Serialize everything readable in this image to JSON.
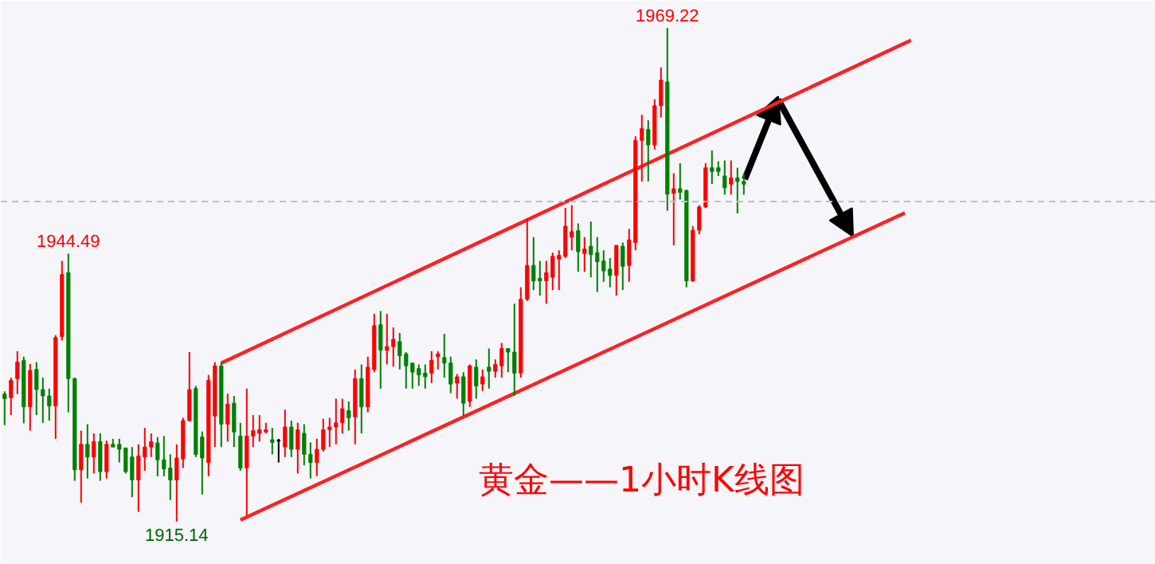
{
  "chart_data": {
    "type": "candlestick",
    "title": "黄金——1小时K线图",
    "categories": [
      null,
      null,
      null,
      null,
      null,
      null,
      null,
      null,
      null,
      null,
      null,
      null,
      null,
      null,
      null,
      null,
      null,
      null,
      null,
      null,
      null,
      null,
      null,
      null,
      null,
      null,
      null,
      null,
      null,
      null,
      null,
      null,
      null,
      null,
      null,
      null,
      null,
      null,
      null,
      null,
      null,
      null,
      null,
      null,
      null,
      null,
      null,
      null,
      null,
      null,
      null,
      null,
      null,
      null,
      null,
      null,
      null,
      null,
      null,
      null,
      null,
      null,
      null,
      null,
      null,
      null,
      null,
      null,
      null,
      null,
      null,
      null,
      null,
      null,
      null,
      null,
      null,
      null,
      null,
      null,
      null,
      null,
      null,
      null,
      null,
      null,
      null,
      null,
      null,
      null,
      null,
      null,
      null,
      null,
      null,
      null,
      null,
      null,
      null,
      null,
      null,
      null,
      null,
      null,
      null,
      null,
      null,
      null,
      null,
      null,
      null,
      null,
      null,
      null,
      null,
      null,
      null
    ],
    "ohlc": [
      [
        1929.1,
        1929.4,
        1925.7,
        1928.6
      ],
      [
        1928.7,
        1930.9,
        1926.8,
        1930.6
      ],
      [
        1930.8,
        1933.8,
        1929.1,
        1932.6
      ],
      [
        1932.8,
        1933.2,
        1925.9,
        1927.7
      ],
      [
        1927.7,
        1932.4,
        1925.1,
        1931.7
      ],
      [
        1931.8,
        1932.6,
        1926.8,
        1929.6
      ],
      [
        1929.6,
        1930.9,
        1925.95,
        1928.9
      ],
      [
        1928.9,
        1929.7,
        1926.2,
        1927.8
      ],
      [
        1927.8,
        1935.55,
        1924.2,
        1935.3
      ],
      [
        1935.4,
        1943.7,
        1934.97,
        1942.2
      ],
      [
        1942.4,
        1944.49,
        1927.1,
        1930.8
      ],
      [
        1930.8,
        1930.9,
        1919.6,
        1920.8
      ],
      [
        1920.8,
        1925.1,
        1917.2,
        1923.6
      ],
      [
        1923.6,
        1925.8,
        1919.85,
        1922.2
      ],
      [
        1922.2,
        1924.8,
        1920.4,
        1923.9
      ],
      [
        1923.9,
        1924.8,
        1919.6,
        1920.6
      ],
      [
        1920.6,
        1924.0,
        1919.85,
        1923.6
      ],
      [
        1923.6,
        1924.2,
        1923.3,
        1923.3
      ],
      [
        1923.6,
        1924.2,
        1921.6,
        1923.05
      ],
      [
        1923.2,
        1923.2,
        1920.4,
        1920.6
      ],
      [
        1922.2,
        1923.3,
        1917.8,
        1919.7
      ],
      [
        1919.7,
        1923.6,
        1916.2,
        1922.3
      ],
      [
        1922.2,
        1925.4,
        1920.7,
        1923.3
      ],
      [
        1923.3,
        1924.8,
        1922.2,
        1923.9
      ],
      [
        1923.75,
        1924.4,
        1920.1,
        1921.9
      ],
      [
        1921.9,
        1924.5,
        1920.1,
        1920.9
      ],
      [
        1921.0,
        1922.5,
        1917.5,
        1919.7
      ],
      [
        1919.7,
        1923.6,
        1915.14,
        1922.1
      ],
      [
        1922.0,
        1926.5,
        1921.0,
        1926.2
      ],
      [
        1926.2,
        1933.7,
        1926.1,
        1929.6
      ],
      [
        1929.7,
        1930.0,
        1922.2,
        1922.5
      ],
      [
        1924.4,
        1925.0,
        1918.1,
        1922.1
      ],
      [
        1921.6,
        1931.2,
        1920.1,
        1930.6
      ],
      [
        1926.7,
        1932.6,
        1923.3,
        1932.2
      ],
      [
        1932.2,
        1932.6,
        1923.3,
        1925.8
      ],
      [
        1925.8,
        1929.15,
        1923.9,
        1928.0
      ],
      [
        1928.1,
        1928.9,
        1923.3,
        1924.95
      ],
      [
        1924.5,
        1925.95,
        1920.7,
        1921.0
      ],
      [
        1921.0,
        1929.7,
        1915.8,
        1924.5
      ],
      [
        1924.5,
        1926.8,
        1923.3,
        1925.1
      ],
      [
        1924.8,
        1926.8,
        1923.9,
        1925.2
      ],
      [
        1924.95,
        1925.95,
        1924.8,
        1925.2
      ],
      [
        1924.1,
        1925.4,
        1922.5,
        1923.8
      ],
      [
        1924.0,
        1924.2,
        1921.6,
        1924.0
      ],
      [
        1923.3,
        1927.4,
        1922.2,
        1925.5
      ],
      [
        1925.5,
        1926.2,
        1922.2,
        1923.05
      ],
      [
        1923.05,
        1925.95,
        1920.4,
        1925.2
      ],
      [
        1924.8,
        1925.8,
        1921.3,
        1922.5
      ],
      [
        1922.5,
        1923.8,
        1919.85,
        1921.6
      ],
      [
        1921.6,
        1924.2,
        1920.1,
        1923.05
      ],
      [
        1923.05,
        1926.4,
        1922.8,
        1925.2
      ],
      [
        1925.2,
        1926.5,
        1923.3,
        1925.5
      ],
      [
        1925.5,
        1928.6,
        1923.6,
        1925.95
      ],
      [
        1925.95,
        1928.6,
        1924.8,
        1927.5
      ],
      [
        1927.3,
        1928.3,
        1925.1,
        1926.5
      ],
      [
        1926.6,
        1931.8,
        1923.6,
        1930.8
      ],
      [
        1930.8,
        1932.35,
        1924.8,
        1927.7
      ],
      [
        1927.7,
        1933.2,
        1927.1,
        1932.05
      ],
      [
        1931.8,
        1937.9,
        1931.5,
        1936.6
      ],
      [
        1936.7,
        1938.2,
        1929.7,
        1933.9
      ],
      [
        1933.9,
        1937.9,
        1932.35,
        1934.3
      ],
      [
        1934.3,
        1936.4,
        1932.1,
        1935.1
      ],
      [
        1934.85,
        1935.8,
        1931.8,
        1933.3
      ],
      [
        1933.5,
        1933.7,
        1929.7,
        1932.2
      ],
      [
        1932.5,
        1932.5,
        1929.7,
        1931.5
      ],
      [
        1931.9,
        1932.35,
        1930.0,
        1931.2
      ],
      [
        1931.4,
        1932.35,
        1929.7,
        1931.0
      ],
      [
        1931.4,
        1933.8,
        1930.3,
        1932.8
      ],
      [
        1933.2,
        1933.8,
        1931.8,
        1933.5
      ],
      [
        1933.1,
        1935.7,
        1930.9,
        1932.5
      ],
      [
        1932.5,
        1933.2,
        1929.2,
        1930.2
      ],
      [
        1930.3,
        1931.3,
        1928.6,
        1931.0
      ],
      [
        1931.0,
        1931.5,
        1926.7,
        1928.1
      ],
      [
        1928.3,
        1932.35,
        1927.7,
        1932.2
      ],
      [
        1932.05,
        1932.9,
        1928.6,
        1930.0
      ],
      [
        1930.2,
        1931.8,
        1929.45,
        1931.0
      ],
      [
        1932.05,
        1934.1,
        1929.7,
        1931.6
      ],
      [
        1931.6,
        1932.9,
        1930.9,
        1932.35
      ],
      [
        1932.2,
        1934.7,
        1930.9,
        1934.1
      ],
      [
        1934.1,
        1934.1,
        1931.5,
        1933.7
      ],
      [
        1933.7,
        1939.0,
        1928.9,
        1931.4
      ],
      [
        1931.4,
        1940.8,
        1930.9,
        1939.5
      ],
      [
        1939.5,
        1948.3,
        1939.3,
        1943.2
      ],
      [
        1943.2,
        1946.3,
        1940.5,
        1941.5
      ],
      [
        1941.8,
        1943.7,
        1939.9,
        1941.5
      ],
      [
        1941.5,
        1943.7,
        1939.0,
        1942.4
      ],
      [
        1941.9,
        1944.6,
        1940.5,
        1944.2
      ],
      [
        1943.9,
        1944.85,
        1940.5,
        1944.3
      ],
      [
        1944.2,
        1949.5,
        1944.0,
        1947.5
      ],
      [
        1946.3,
        1949.8,
        1944.85,
        1946.9
      ],
      [
        1947.0,
        1947.8,
        1942.5,
        1944.7
      ],
      [
        1944.5,
        1946.3,
        1942.5,
        1945.0
      ],
      [
        1945.3,
        1948.0,
        1941.9,
        1944.4
      ],
      [
        1944.6,
        1946.3,
        1940.3,
        1943.6
      ],
      [
        1943.7,
        1944.85,
        1941.4,
        1942.6
      ],
      [
        1942.8,
        1944.0,
        1940.8,
        1942.1
      ],
      [
        1942.1,
        1945.4,
        1939.9,
        1945.4
      ],
      [
        1945.3,
        1945.7,
        1940.5,
        1943.1
      ],
      [
        1943.2,
        1947.2,
        1941.4,
        1946.0
      ],
      [
        1945.7,
        1957.35,
        1944.85,
        1956.9
      ],
      [
        1956.9,
        1959.7,
        1952.4,
        1958.2
      ],
      [
        1958.1,
        1959.1,
        1952.4,
        1956.4
      ],
      [
        1956.4,
        1961.4,
        1955.9,
        1960.7
      ],
      [
        1960.7,
        1964.9,
        1959.4,
        1963.5
      ],
      [
        1963.3,
        1969.22,
        1949.2,
        1951.0
      ],
      [
        1951.1,
        1953.3,
        1945.4,
        1951.6
      ],
      [
        1951.6,
        1954.4,
        1950.4,
        1951.2
      ],
      [
        1951.4,
        1951.5,
        1940.8,
        1941.5
      ],
      [
        1941.5,
        1947.5,
        1941.4,
        1947.05
      ],
      [
        1947.05,
        1949.8,
        1946.6,
        1949.6
      ],
      [
        1949.6,
        1954.4,
        1949.5,
        1953.9
      ],
      [
        1953.9,
        1955.8,
        1952.1,
        1953.5
      ],
      [
        1953.9,
        1954.6,
        1953.0,
        1953.5
      ],
      [
        1953.0,
        1954.7,
        1950.95,
        1951.7
      ],
      [
        1952.1,
        1954.7,
        1950.95,
        1952.8
      ],
      [
        1952.8,
        1953.9,
        1948.9,
        1952.4
      ],
      [
        1952.4,
        1953.3,
        1950.95,
        1952.1
      ]
    ],
    "series": [
      {
        "type": "line",
        "color": "#ff2020",
        "values": [
          null,
          null,
          null,
          null,
          null,
          null,
          null,
          null,
          null,
          null,
          null,
          null,
          null,
          null,
          null,
          null,
          null,
          null,
          null,
          null,
          null,
          null,
          null,
          null,
          null,
          null,
          null,
          null,
          null,
          null,
          null,
          null,
          null,
          null,
          1932.5,
          null,
          null,
          null,
          null,
          null,
          null,
          null,
          null,
          null,
          null,
          null,
          null,
          null,
          null,
          null,
          null,
          null,
          null,
          null,
          null,
          null,
          null,
          null,
          null,
          null,
          null,
          null,
          null,
          null,
          null,
          null,
          null,
          null,
          null,
          null,
          null,
          null,
          null,
          null,
          null,
          null,
          null,
          null,
          null,
          null,
          null,
          null,
          null,
          null,
          null,
          null,
          null,
          null,
          null,
          null,
          null,
          null,
          null,
          null,
          null,
          null,
          null,
          null,
          null,
          null,
          null,
          null,
          null,
          null,
          null,
          null,
          null,
          null,
          null,
          null,
          null,
          null,
          null,
          null,
          null,
          null,
          1959.3
        ]
      },
      {
        "type": "line",
        "color": "#ff2020",
        "values": [
          null,
          null,
          null,
          null,
          null,
          null,
          null,
          null,
          null,
          null,
          null,
          null,
          null,
          null,
          null,
          null,
          null,
          null,
          null,
          null,
          null,
          null,
          null,
          null,
          null,
          null,
          null,
          null,
          null,
          null,
          null,
          null,
          null,
          null,
          null,
          null,
          null,
          1915.3,
          null,
          null,
          null,
          null,
          null,
          null,
          null,
          null,
          null,
          null,
          null,
          null,
          null,
          null,
          null,
          null,
          null,
          null,
          null,
          null,
          null,
          null,
          null,
          null,
          null,
          null,
          null,
          null,
          null,
          null,
          null,
          null,
          null,
          null,
          null,
          null,
          null,
          null,
          null,
          null,
          null,
          null,
          null,
          null,
          null,
          null,
          null,
          null,
          null,
          null,
          null,
          null,
          null,
          null,
          null,
          null,
          null,
          null,
          null,
          null,
          null,
          null,
          null,
          null,
          null,
          null,
          null,
          null,
          null,
          null,
          null,
          null,
          null,
          null,
          null,
          null,
          null,
          null,
          1940.8
        ]
      }
    ],
    "ref_lines": [
      {
        "axis": "y",
        "value": 1950.2,
        "color": "#c0c0c0",
        "line_style": "dashed"
      }
    ],
    "annotations": [
      {
        "text": "1969.22",
        "y": 1969.22
      },
      {
        "text": "1944.49",
        "y": 1944.49
      },
      {
        "text": "1915.14",
        "y": 1915.14
      }
    ],
    "grid": false,
    "tick_labels": false
  }
}
